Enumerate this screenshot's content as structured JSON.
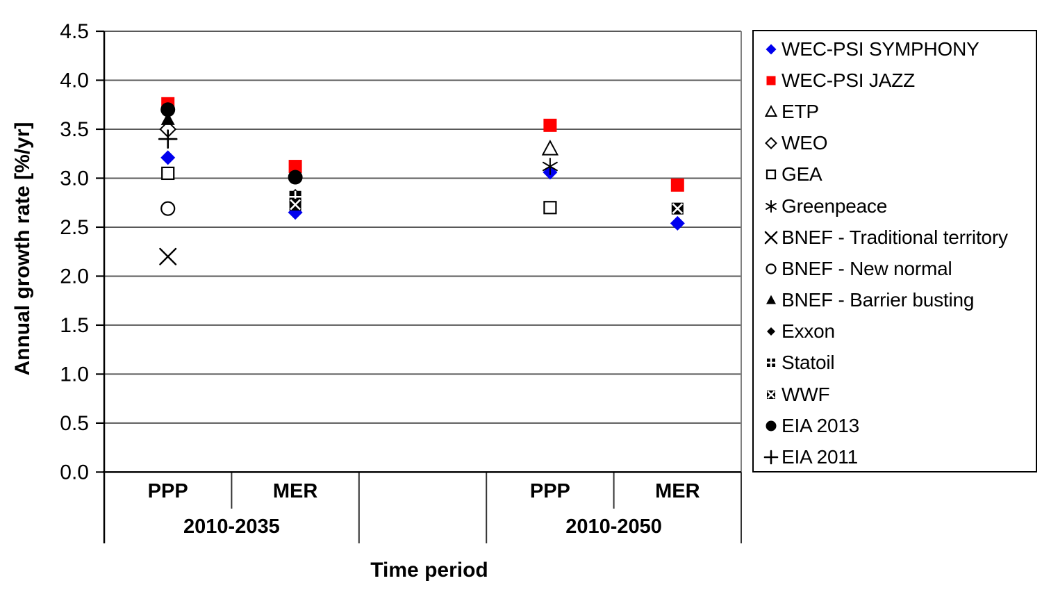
{
  "axes": {
    "x_title": "Time period",
    "y_title": "Annual growth rate [%/yr]"
  },
  "chart_data": {
    "type": "scatter",
    "xlabel": "Time period",
    "ylabel": "Annual growth rate [%/yr]",
    "ylim": [
      0.0,
      4.5
    ],
    "ytick_step": 0.5,
    "grid": true,
    "legend_position": "right",
    "categories": [
      "PPP",
      "MER",
      "",
      "PPP",
      "MER"
    ],
    "group_labels": [
      {
        "label": "2010-2035",
        "from_slot": 0,
        "to_slot": 2
      },
      {
        "label": "",
        "from_slot": 2,
        "to_slot": 3
      },
      {
        "label": "2010-2050",
        "from_slot": 3,
        "to_slot": 5
      }
    ],
    "series": [
      {
        "name": "WEC-PSI SYMPHONY",
        "marker": "diamond-filled",
        "color": "#0000EE",
        "points": [
          {
            "slot": 0,
            "y": 3.21
          },
          {
            "slot": 1,
            "y": 2.65
          },
          {
            "slot": 3,
            "y": 3.06
          },
          {
            "slot": 4,
            "y": 2.54
          }
        ]
      },
      {
        "name": "WEC-PSI JAZZ",
        "marker": "square-filled",
        "color": "#FF0000",
        "points": [
          {
            "slot": 0,
            "y": 3.76
          },
          {
            "slot": 1,
            "y": 3.12
          },
          {
            "slot": 3,
            "y": 3.54
          },
          {
            "slot": 4,
            "y": 2.93
          }
        ]
      },
      {
        "name": "ETP",
        "marker": "triangle-open",
        "color": "#000000",
        "points": [
          {
            "slot": 3,
            "y": 3.3
          }
        ]
      },
      {
        "name": "WEO",
        "marker": "diamond-open",
        "color": "#000000",
        "points": [
          {
            "slot": 0,
            "y": 3.5
          }
        ]
      },
      {
        "name": "GEA",
        "marker": "square-open",
        "color": "#000000",
        "points": [
          {
            "slot": 0,
            "y": 3.05
          },
          {
            "slot": 3,
            "y": 2.7
          }
        ]
      },
      {
        "name": "Greenpeace",
        "marker": "asterisk",
        "color": "#000000",
        "points": [
          {
            "slot": 3,
            "y": 3.12
          }
        ]
      },
      {
        "name": "BNEF - Traditional territory",
        "marker": "x",
        "color": "#000000",
        "points": [
          {
            "slot": 0,
            "y": 2.2
          }
        ]
      },
      {
        "name": "BNEF - New normal",
        "marker": "circle-open",
        "color": "#000000",
        "points": [
          {
            "slot": 0,
            "y": 2.69
          }
        ]
      },
      {
        "name": "BNEF - Barrier busting",
        "marker": "triangle-filled",
        "color": "#000000",
        "points": [
          {
            "slot": 0,
            "y": 3.6
          }
        ]
      },
      {
        "name": "Exxon",
        "marker": "diamond-small-filled",
        "color": "#000000",
        "points": [
          {
            "slot": 1,
            "y": 2.83
          }
        ]
      },
      {
        "name": "Statoil",
        "marker": "square-quad",
        "color": "#000000",
        "points": [
          {
            "slot": 1,
            "y": 2.81
          }
        ]
      },
      {
        "name": "WWF",
        "marker": "square-x",
        "color": "#000000",
        "points": [
          {
            "slot": 1,
            "y": 2.73
          },
          {
            "slot": 4,
            "y": 2.69
          }
        ]
      },
      {
        "name": "EIA 2013",
        "marker": "circle-filled",
        "color": "#000000",
        "points": [
          {
            "slot": 0,
            "y": 3.7
          },
          {
            "slot": 1,
            "y": 3.01
          }
        ]
      },
      {
        "name": "EIA 2011",
        "marker": "plus",
        "color": "#000000",
        "points": [
          {
            "slot": 0,
            "y": 3.4
          }
        ]
      }
    ],
    "style_colors": {
      "gridline": "#595959",
      "axis": "#000000",
      "table_line": "#333333",
      "plot_right_border": "#808080",
      "background": "#FFFFFF",
      "legend_border": "#000000",
      "text": "#000000"
    }
  }
}
